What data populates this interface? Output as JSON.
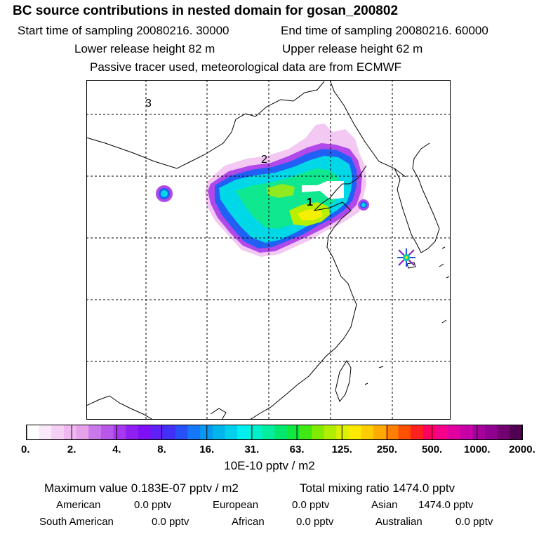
{
  "header": {
    "title": "BC  source contributions in nested domain for gosan_200802",
    "start_label": "Start time of sampling 20080216. 30000",
    "end_label": "End time of sampling 20080216. 60000",
    "lower_label": "Lower release height   82 m",
    "upper_label": "Upper release height   62 m",
    "tracer_label": "Passive tracer used, meteorological data are from ECMWF"
  },
  "map": {
    "markers": [
      "3",
      "2",
      "1"
    ],
    "receptor_symbol": "star-cross-icon"
  },
  "colorbar": {
    "tick_labels": [
      "0.",
      "2.",
      "4.",
      "8.",
      "16.",
      "31.",
      "63.",
      "125.",
      "250.",
      "500.",
      "1000.",
      "2000."
    ],
    "unit_label": "10E-10 pptv / m2",
    "colors": [
      "#ffffff",
      "#fbe8fb",
      "#f5d0f5",
      "#efb8f0",
      "#e7a0ea",
      "#c878e8",
      "#b858ea",
      "#a838ee",
      "#9020f2",
      "#7f10f5",
      "#6020f8",
      "#4030f8",
      "#2850f8",
      "#1478f8",
      "#0898f0",
      "#00b4ec",
      "#00d0ec",
      "#00f0f0",
      "#00f0cc",
      "#00ee9e",
      "#00e870",
      "#10e840",
      "#40e814",
      "#80ea00",
      "#b0ee00",
      "#dcf000",
      "#ffe800",
      "#ffcc00",
      "#ffaa00",
      "#ff8000",
      "#ff5000",
      "#ff2020",
      "#ff0060",
      "#f4008c",
      "#e000a0",
      "#c800a8",
      "#a8009c",
      "#900090",
      "#720070",
      "#500050"
    ]
  },
  "stats": {
    "max_label": "Maximum value  0.183E-07 pptv / m2",
    "total_label": "Total mixing ratio     1474.0 pptv",
    "american_name": "American",
    "american_value": "0.0 pptv",
    "european_name": "European",
    "european_value": "0.0 pptv",
    "asian_name": "Asian",
    "asian_value": "1474.0 pptv",
    "south_american_name": "South American",
    "south_american_value": "0.0 pptv",
    "african_name": "African",
    "african_value": "0.0 pptv",
    "australian_name": "Australian",
    "australian_value": "0.0 pptv"
  }
}
